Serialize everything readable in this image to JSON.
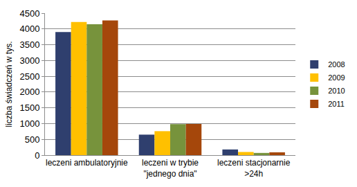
{
  "chart_data": {
    "type": "bar",
    "y_label": "liczba świadczeń w tys.",
    "categories": [
      "leczeni ambulatoryjnie",
      "leczeni w trybie\n\"jednego dnia\"",
      "leczeni stacjonarnie\n>24h"
    ],
    "series": [
      {
        "name": "2008",
        "color": "#2f3f6e",
        "values": [
          3900,
          650,
          180
        ]
      },
      {
        "name": "2009",
        "color": "#ffc000",
        "values": [
          4220,
          760,
          100
        ]
      },
      {
        "name": "2010",
        "color": "#77933c",
        "values": [
          4150,
          980,
          70
        ]
      },
      {
        "name": "2011",
        "color": "#a5470b",
        "values": [
          4270,
          990,
          90
        ]
      }
    ],
    "ylim": [
      0,
      4500
    ],
    "yticks": [
      0,
      500,
      1000,
      1500,
      2000,
      2500,
      3000,
      3500,
      4000,
      4500
    ],
    "grid": true,
    "legend": "right"
  }
}
